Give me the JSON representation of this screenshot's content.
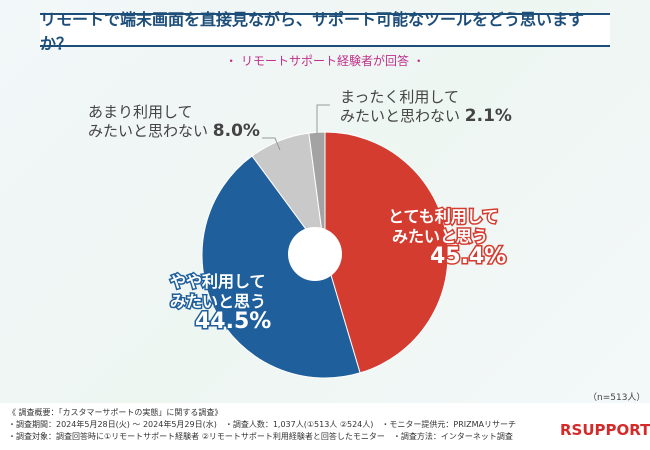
{
  "header": {
    "title": "リモートで端末画面を直接見ながら、サポート可能なツールをどう思いますか？",
    "subtitle": "・ リモートサポート経験者が回答 ・"
  },
  "chart_data": {
    "type": "pie",
    "title": "リモートで端末画面を直接見ながら、サポート可能なツールをどう思いますか？",
    "categories": [
      "とても利用してみたいと思う",
      "やや利用してみたいと思う",
      "あまり利用してみたいと思わない",
      "まったく利用してみたいと思わない"
    ],
    "values": [
      45.4,
      44.5,
      8.0,
      2.1
    ],
    "colors": [
      "#d43c30",
      "#1f5f9c",
      "#c9c9c9",
      "#a3a3a3"
    ],
    "labels": [
      {
        "l1": "とても利用して",
        "l2": "みたいと思う",
        "pct": "45.4%"
      },
      {
        "l1": "やや利用して",
        "l2": "みたいと思う",
        "pct": "44.5%"
      },
      {
        "l1": "あまり利用して",
        "l2": "みたいと思わない",
        "pct": "8.0%"
      },
      {
        "l1": "まったく利用して",
        "l2": "みたいと思わない",
        "pct": "2.1%"
      }
    ],
    "n_note": "（n=513人）"
  },
  "footer": {
    "l1": "《 調査概要：「カスタマーサポートの実態」に関する調査》",
    "l2": "・調査期間：2024年5月28日(火) ～ 2024年5月29日(水)　・調査人数：1,037人(①513人 ②524人)　・モニター提供元：PRIZMAリサーチ",
    "l3": "・調査対象：調査回答時に①リモートサポート経験者 ②リモートサポート利用経験者と回答したモニター　・調査方法：インターネット調査",
    "logo": "RSUPPORT"
  }
}
